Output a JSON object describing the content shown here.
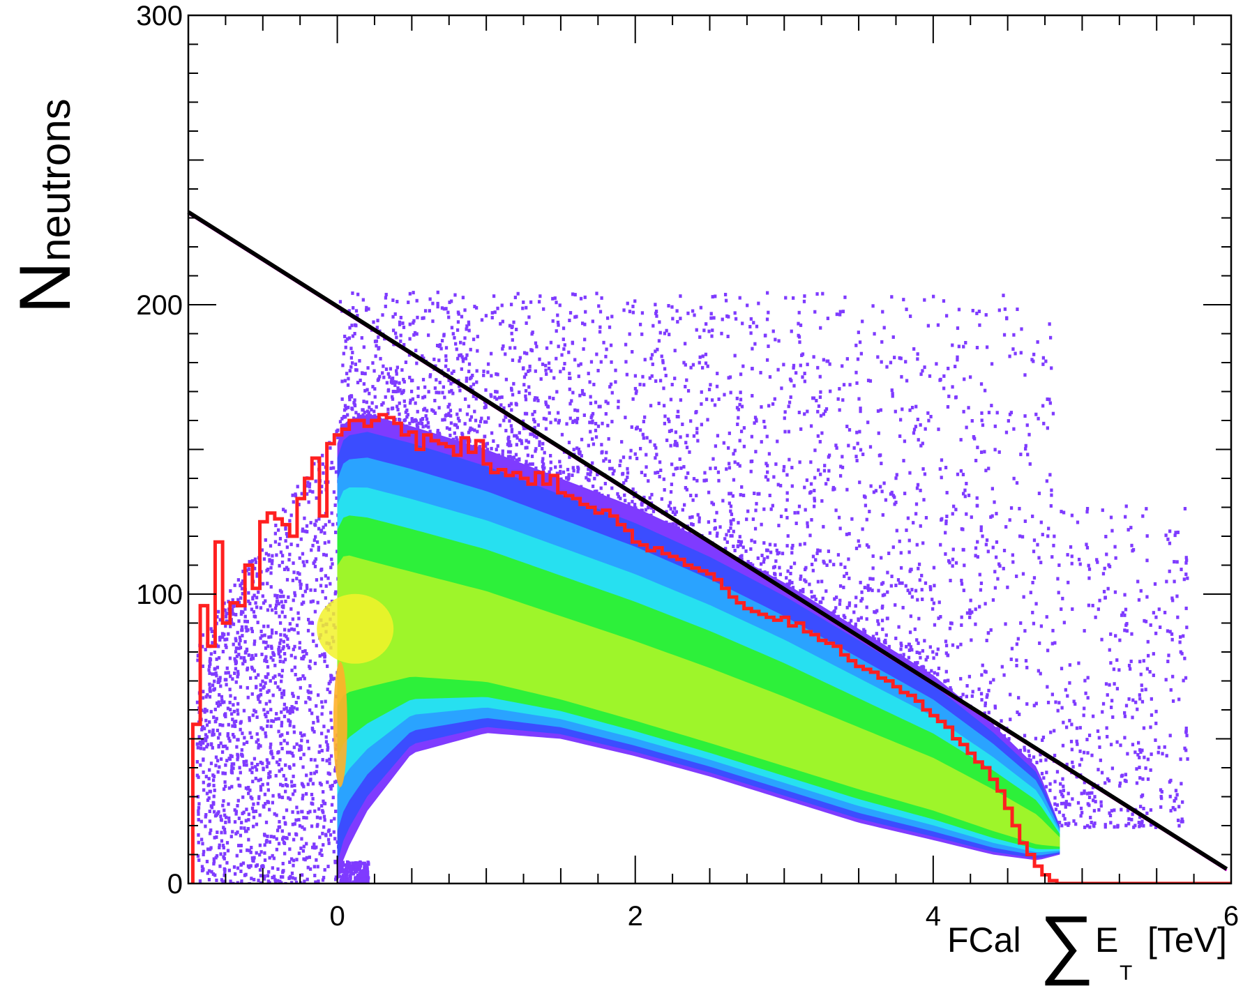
{
  "chart_data": {
    "type": "heatmap",
    "title": "",
    "xlabel": {
      "prefix": "FCal",
      "symbol": "∑",
      "var": "E",
      "sub": "T",
      "unit": "[TeV]"
    },
    "ylabel": {
      "main": "N",
      "sub": "neutrons"
    },
    "xlim": [
      -1,
      6
    ],
    "ylim": [
      0,
      300
    ],
    "x_ticks": [
      "0",
      "2",
      "4",
      "6"
    ],
    "y_ticks": [
      "0",
      "100",
      "200",
      "300"
    ],
    "grid": false,
    "colors": {
      "histogram": "#ff2020",
      "fit_line": "#000000",
      "fit_line_outline": "#ff00ff",
      "palette": [
        "#7f3bff",
        "#3b4dff",
        "#2aa3ff",
        "#27e0f0",
        "#2df03a",
        "#9ef52a",
        "#f2f22a",
        "#ffb02a",
        "#ff5a2a"
      ]
    },
    "fit_line": {
      "x": [
        -1.0,
        5.97
      ],
      "y": [
        232,
        5
      ]
    },
    "histogram": {
      "bin_edges": [
        -0.97,
        -0.92,
        -0.87,
        -0.82,
        -0.77,
        -0.72,
        -0.67,
        -0.62,
        -0.57,
        -0.52,
        -0.47,
        -0.42,
        -0.37,
        -0.32,
        -0.27,
        -0.22,
        -0.17,
        -0.12,
        -0.07,
        -0.02,
        0.03,
        0.08,
        0.13,
        0.18,
        0.23,
        0.28,
        0.33,
        0.38,
        0.43,
        0.48,
        0.53,
        0.58,
        0.63,
        0.68,
        0.73,
        0.78,
        0.83,
        0.88,
        0.93,
        0.98,
        1.03,
        1.08,
        1.13,
        1.18,
        1.23,
        1.28,
        1.33,
        1.38,
        1.43,
        1.48,
        1.53,
        1.58,
        1.63,
        1.68,
        1.73,
        1.78,
        1.83,
        1.88,
        1.93,
        1.98,
        2.03,
        2.08,
        2.13,
        2.18,
        2.23,
        2.28,
        2.33,
        2.38,
        2.43,
        2.48,
        2.53,
        2.58,
        2.63,
        2.68,
        2.73,
        2.78,
        2.83,
        2.88,
        2.93,
        2.98,
        3.03,
        3.08,
        3.13,
        3.18,
        3.23,
        3.28,
        3.33,
        3.38,
        3.43,
        3.48,
        3.53,
        3.58,
        3.63,
        3.68,
        3.73,
        3.78,
        3.83,
        3.88,
        3.93,
        3.98,
        4.03,
        4.08,
        4.13,
        4.18,
        4.23,
        4.28,
        4.33,
        4.38,
        4.43,
        4.48,
        4.53,
        4.58,
        4.63,
        4.68,
        4.73,
        4.78,
        4.83,
        4.88,
        4.93,
        4.98,
        5.5,
        6.0
      ],
      "counts": [
        55,
        96,
        82,
        118,
        90,
        97,
        96,
        110,
        102,
        125,
        128,
        126,
        124,
        120,
        133,
        140,
        147,
        127,
        152,
        155,
        157,
        160,
        160,
        158,
        160,
        162,
        161,
        159,
        155,
        156,
        150,
        155,
        153,
        152,
        151,
        148,
        154,
        149,
        153,
        145,
        142,
        143,
        141,
        142,
        140,
        138,
        142,
        138,
        141,
        135,
        134,
        133,
        131,
        130,
        128,
        129,
        127,
        124,
        122,
        118,
        117,
        115,
        116,
        114,
        113,
        112,
        110,
        109,
        108,
        107,
        105,
        102,
        99,
        97,
        95,
        94,
        93,
        92,
        91,
        92,
        89,
        90,
        87,
        86,
        84,
        83,
        82,
        79,
        77,
        75,
        74,
        73,
        71,
        70,
        68,
        66,
        65,
        63,
        60,
        58,
        56,
        54,
        50,
        48,
        45,
        42,
        40,
        36,
        32,
        26,
        20,
        14,
        10,
        6,
        3,
        1,
        0,
        0,
        0,
        0,
        0
      ]
    },
    "density_band": {
      "description_units": "N as function of sum E_T (TeV)",
      "x": [
        0.0,
        0.05,
        0.2,
        0.5,
        1.0,
        1.5,
        2.0,
        2.5,
        3.0,
        3.5,
        4.0,
        4.4,
        4.7,
        4.85
      ],
      "upper_edge": [
        152,
        160,
        162,
        158,
        150,
        140,
        130,
        118,
        104,
        88,
        72,
        55,
        40,
        20
      ],
      "lower_edge": [
        0,
        10,
        25,
        45,
        52,
        50,
        44,
        37,
        29,
        21,
        15,
        10,
        8,
        10
      ],
      "core": [
        90,
        92,
        88,
        84,
        78,
        70,
        62,
        54,
        46,
        38,
        30,
        22,
        16,
        14
      ]
    }
  }
}
